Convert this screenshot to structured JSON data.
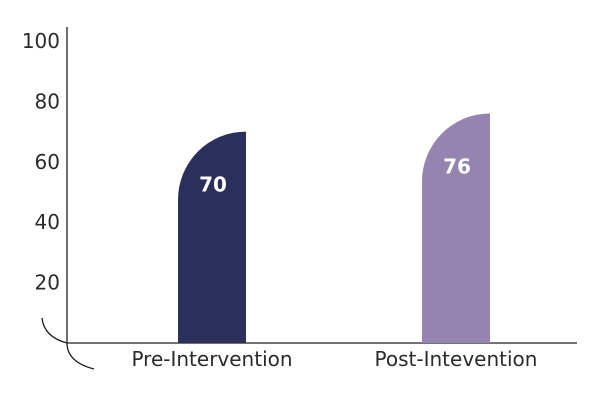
{
  "chart_data": {
    "type": "bar",
    "categories": [
      "Pre-Intervention",
      "Post-Intevention"
    ],
    "values": [
      70,
      76
    ],
    "value_labels": [
      "70",
      "76"
    ],
    "y_ticks": [
      20,
      40,
      60,
      80,
      100
    ],
    "ylim": [
      0,
      100
    ],
    "grid": false,
    "title": "",
    "xlabel": "",
    "ylabel": ""
  },
  "colors": {
    "bars": [
      "#2a2f5b",
      "#9583b0"
    ],
    "axis": "#1f1f1f",
    "label_text": "#ffffff"
  }
}
